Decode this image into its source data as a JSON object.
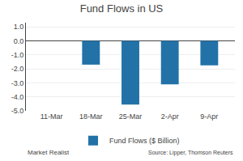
{
  "chart_data": {
    "type": "bar",
    "title": "Fund Flows in US",
    "categories": [
      "11-Mar",
      "18-Mar",
      "25-Mar",
      "2-Apr",
      "9-Apr"
    ],
    "series": [
      {
        "name": "Fund Flows ($ Billion)",
        "color": "#2272a8",
        "values": [
          0.0,
          -1.7,
          -4.55,
          -3.1,
          -1.75
        ]
      }
    ],
    "ylim": [
      -5.0,
      1.3
    ],
    "yticks": [
      {
        "value": 1.0,
        "label": "1.0"
      },
      {
        "value": 0.0,
        "label": "0.0"
      },
      {
        "value": -1.0,
        "label": "-1.0"
      },
      {
        "value": -2.0,
        "label": "-2.0"
      },
      {
        "value": -3.0,
        "label": "-3.0"
      },
      {
        "value": -4.0,
        "label": "-4.0"
      },
      {
        "value": -5.0,
        "label": "-5.0"
      }
    ],
    "grid": true,
    "legend": "bottom",
    "annotations": [
      "Market Realist",
      "Source: Lipper, Thomson Reuters"
    ]
  }
}
